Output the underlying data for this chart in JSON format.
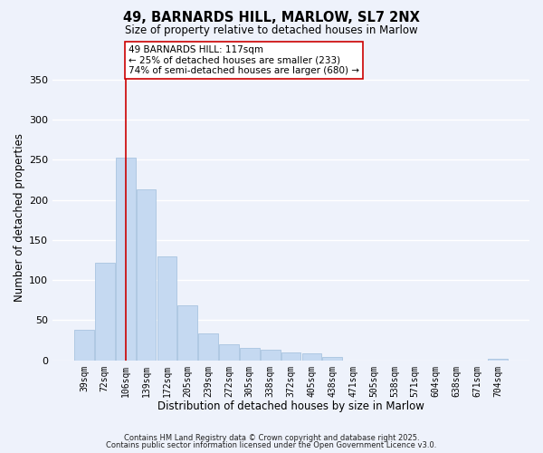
{
  "title": "49, BARNARDS HILL, MARLOW, SL7 2NX",
  "subtitle": "Size of property relative to detached houses in Marlow",
  "xlabel": "Distribution of detached houses by size in Marlow",
  "ylabel": "Number of detached properties",
  "bar_color": "#c5d9f1",
  "bar_edge_color": "#a8c4e0",
  "background_color": "#eef2fb",
  "grid_color": "#ffffff",
  "categories": [
    "39sqm",
    "72sqm",
    "106sqm",
    "139sqm",
    "172sqm",
    "205sqm",
    "239sqm",
    "272sqm",
    "305sqm",
    "338sqm",
    "372sqm",
    "405sqm",
    "438sqm",
    "471sqm",
    "505sqm",
    "538sqm",
    "571sqm",
    "604sqm",
    "638sqm",
    "671sqm",
    "704sqm"
  ],
  "values": [
    38,
    122,
    252,
    213,
    129,
    68,
    34,
    20,
    16,
    13,
    10,
    9,
    4,
    0,
    0,
    0,
    0,
    0,
    0,
    0,
    2
  ],
  "vline_x_index": 2,
  "vline_color": "#cc0000",
  "annotation_line1": "49 BARNARDS HILL: 117sqm",
  "annotation_line2": "← 25% of detached houses are smaller (233)",
  "annotation_line3": "74% of semi-detached houses are larger (680) →",
  "annotation_box_color": "#ffffff",
  "annotation_box_edge": "#cc0000",
  "ylim": [
    0,
    355
  ],
  "yticks": [
    0,
    50,
    100,
    150,
    200,
    250,
    300,
    350
  ],
  "footer1": "Contains HM Land Registry data © Crown copyright and database right 2025.",
  "footer2": "Contains public sector information licensed under the Open Government Licence v3.0."
}
